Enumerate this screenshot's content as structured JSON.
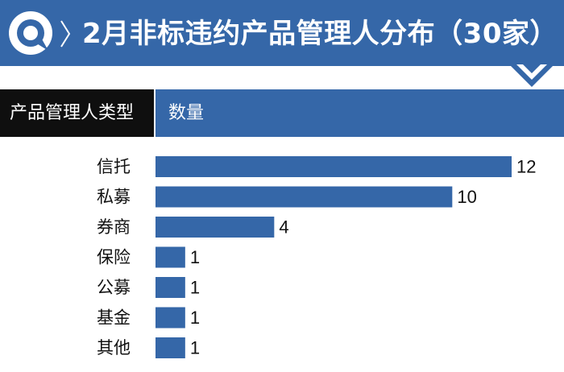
{
  "header": {
    "title": "2月非标违约产品管理人分布（30家）",
    "col_type": "产品管理人类型",
    "col_qty": "数量"
  },
  "colors": {
    "bar": "#3567a8",
    "title_bg": "#3567a8",
    "header_dark": "#0f0f0f"
  },
  "icons": {
    "logo": "circular-arrow-logo",
    "separator": "angle-separator-icon",
    "chevron": "chevron-down-icon"
  },
  "chart_data": {
    "type": "bar",
    "orientation": "horizontal",
    "categories": [
      "信托",
      "私募",
      "券商",
      "保险",
      "公募",
      "基金",
      "其他"
    ],
    "values": [
      12,
      10,
      4,
      1,
      1,
      1,
      1
    ],
    "title": "2月非标违约产品管理人分布（30家）",
    "xlabel": "数量",
    "ylabel": "产品管理人类型",
    "xlim": [
      0,
      12
    ],
    "grid": false,
    "legend": "none"
  }
}
